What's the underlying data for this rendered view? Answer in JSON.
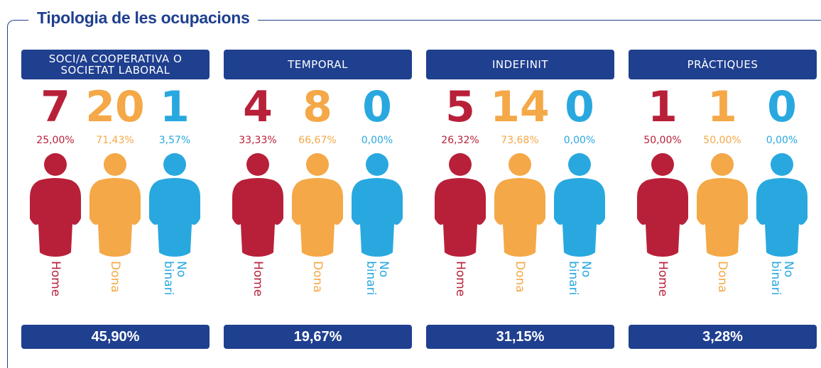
{
  "title": "Tipologia de les ocupacions",
  "groups": [
    {
      "label": "SOCI/A COOPERATIVA O SOCIETAT LABORAL",
      "total": "45,90%",
      "people": [
        {
          "count": 7,
          "percent": "25,00%",
          "label": "Home"
        },
        {
          "count": 20,
          "percent": "71,43%",
          "label": "Dona"
        },
        {
          "count": 1,
          "percent": "3,57%",
          "label": "No binari"
        }
      ]
    },
    {
      "label": "TEMPORAL",
      "total": "19,67%",
      "people": [
        {
          "count": 4,
          "percent": "33,33%",
          "label": "Home"
        },
        {
          "count": 8,
          "percent": "66,67%",
          "label": "Dona"
        },
        {
          "count": 0,
          "percent": "0,00%",
          "label": "No binari"
        }
      ]
    },
    {
      "label": "INDEFINIT",
      "total": "31,15%",
      "people": [
        {
          "count": 5,
          "percent": "26,32%",
          "label": "Home"
        },
        {
          "count": 14,
          "percent": "73,68%",
          "label": "Dona"
        },
        {
          "count": 0,
          "percent": "0,00%",
          "label": "No binari"
        }
      ]
    },
    {
      "label": "PRÀCTIQUES",
      "total": "3,28%",
      "people": [
        {
          "count": 1,
          "percent": "50,00%",
          "label": "Home"
        },
        {
          "count": 1,
          "percent": "50,00%",
          "label": "Dona"
        },
        {
          "count": 0,
          "percent": "0,00%",
          "label": "No binari"
        }
      ]
    }
  ]
}
